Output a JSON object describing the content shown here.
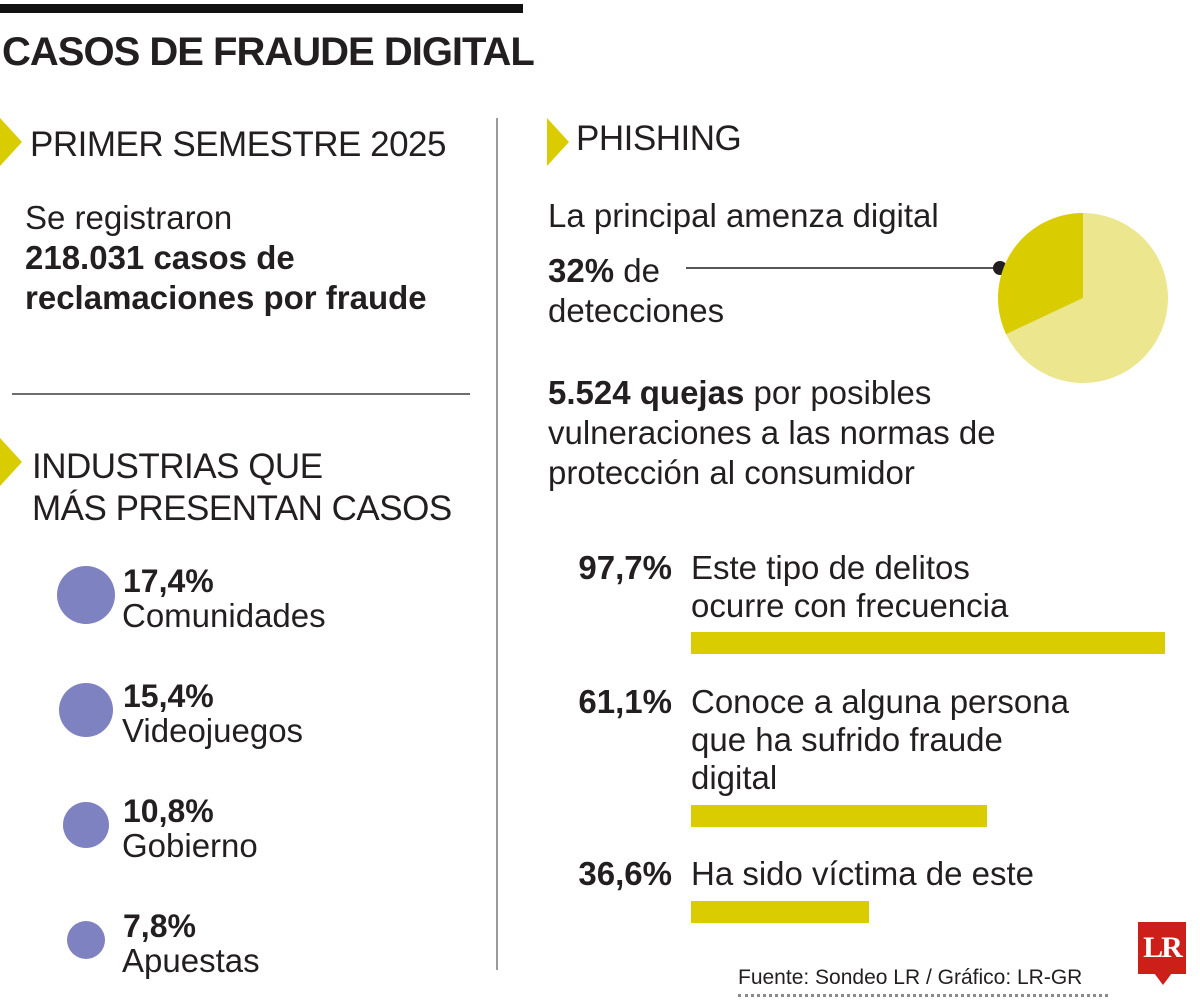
{
  "title": "CASOS DE FRAUDE DIGITAL",
  "semestre": {
    "heading": "PRIMER SEMESTRE 2025",
    "line1": "Se registraron",
    "bold_text": "218.031 casos de reclamaciones por fraude"
  },
  "industrias": {
    "heading_line1": "INDUSTRIAS QUE",
    "heading_line2": "MÁS PRESENTAN CASOS"
  },
  "phishing": {
    "heading": "PHISHING",
    "subtitle": "La principal amenza digital",
    "pct": "32%",
    "pct_suffix": "de",
    "pct_line2": "detecciones",
    "quejas_bold": "5.524 quejas",
    "quejas_text": "por posibles vulneraciones a las normas de protección al consumidor"
  },
  "chart_data": [
    {
      "type": "bubble",
      "categories": [
        "Comunidades",
        "Videojuegos",
        "Gobierno",
        "Apuestas"
      ],
      "values": [
        17.4,
        15.4,
        10.8,
        7.8
      ],
      "value_labels": [
        "17,4%",
        "15,4%",
        "10,8%",
        "7,8%"
      ],
      "color": "#7e82c0"
    },
    {
      "type": "pie",
      "values": [
        32,
        68
      ],
      "colors": [
        "#d9cc00",
        "#ece68e"
      ]
    },
    {
      "type": "bar",
      "orientation": "horizontal",
      "categories": [
        "Este tipo de delitos ocurre con frecuencia",
        "Conoce a alguna persona que ha sufrido fraude digital",
        "Ha sido víctima de este"
      ],
      "values": [
        97.7,
        61.1,
        36.6
      ],
      "value_labels": [
        "97,7%",
        "61,1%",
        "36,6%"
      ],
      "xlim": [
        0,
        100
      ],
      "color": "#d9cc00"
    }
  ],
  "footer": {
    "source": "Fuente: Sondeo LR / Gráfico: LR-GR",
    "logo": "LR"
  }
}
